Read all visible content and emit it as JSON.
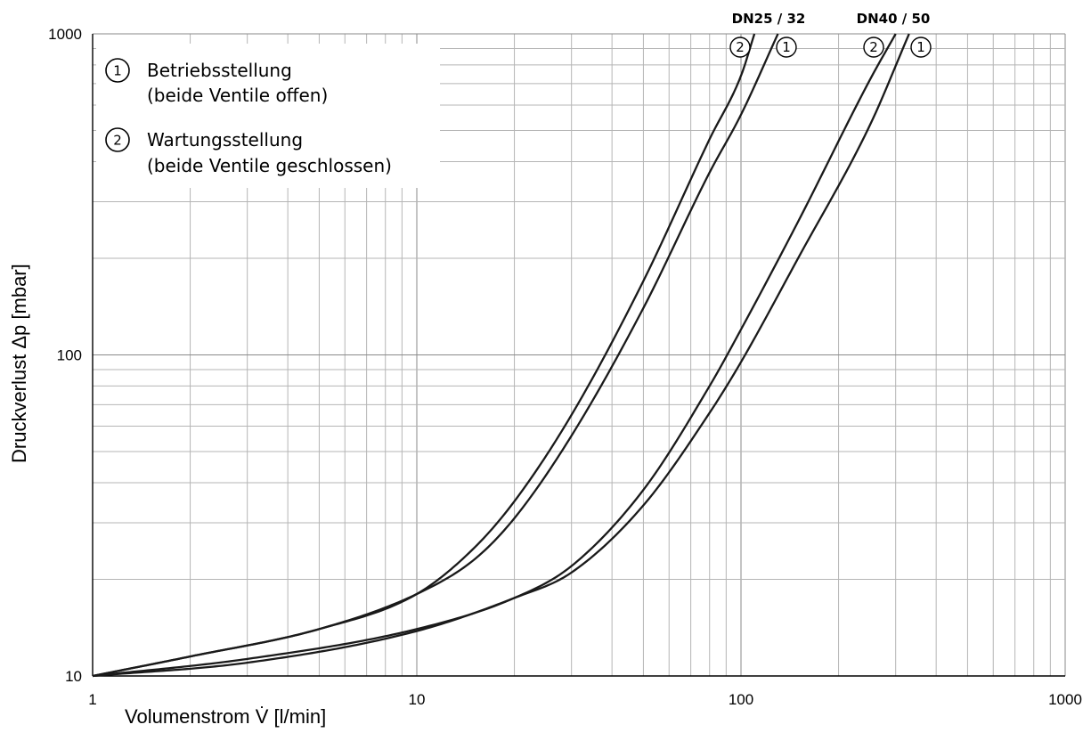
{
  "chart_data": {
    "type": "line",
    "title": "",
    "xlabel": "Volumenstrom V̇ [l/min]",
    "ylabel": "Druckverlust Δp [mbar]",
    "xscale": "log",
    "yscale": "log",
    "xlim": [
      1,
      1000
    ],
    "ylim": [
      10,
      1000
    ],
    "grid": true,
    "x_ticks": [
      "1",
      "10",
      "100",
      "1000"
    ],
    "y_ticks": [
      "10",
      "100",
      "1000"
    ],
    "legend": {
      "placement": "top-left",
      "items": [
        {
          "marker": "1",
          "line1": "Betriebsstellung",
          "line2": "(beide Ventile offen)"
        },
        {
          "marker": "2",
          "line1": "Wartungsstellung",
          "line2": "(beide Ventile geschlossen)"
        }
      ]
    },
    "groups": [
      {
        "label": "DN25 / 32",
        "markers": [
          "2",
          "1"
        ]
      },
      {
        "label": "DN40 / 50",
        "markers": [
          "2",
          "1"
        ]
      }
    ],
    "series": [
      {
        "group": "DN25 / 32",
        "marker": "2",
        "points": [
          [
            1,
            10
          ],
          [
            2,
            11.5
          ],
          [
            5,
            14
          ],
          [
            10,
            18
          ],
          [
            15,
            25
          ],
          [
            20,
            35
          ],
          [
            30,
            65
          ],
          [
            50,
            170
          ],
          [
            80,
            470
          ],
          [
            100,
            740
          ],
          [
            110,
            1000
          ]
        ]
      },
      {
        "group": "DN25 / 32",
        "marker": "1",
        "points": [
          [
            1,
            10
          ],
          [
            2,
            11.5
          ],
          [
            5,
            14
          ],
          [
            10,
            18
          ],
          [
            15,
            23
          ],
          [
            20,
            31
          ],
          [
            30,
            56
          ],
          [
            50,
            140
          ],
          [
            80,
            370
          ],
          [
            100,
            560
          ],
          [
            130,
            1000
          ]
        ]
      },
      {
        "group": "DN40 / 50",
        "marker": "2",
        "points": [
          [
            1,
            10
          ],
          [
            3,
            11.3
          ],
          [
            10,
            14
          ],
          [
            20,
            17.5
          ],
          [
            30,
            22
          ],
          [
            50,
            38
          ],
          [
            80,
            80
          ],
          [
            100,
            120
          ],
          [
            150,
            260
          ],
          [
            250,
            720
          ],
          [
            300,
            1000
          ]
        ]
      },
      {
        "group": "DN40 / 50",
        "marker": "1",
        "points": [
          [
            1,
            10
          ],
          [
            3,
            11
          ],
          [
            10,
            13.8
          ],
          [
            20,
            17.5
          ],
          [
            30,
            21
          ],
          [
            50,
            34
          ],
          [
            80,
            66
          ],
          [
            100,
            95
          ],
          [
            150,
            200
          ],
          [
            250,
            520
          ],
          [
            330,
            1000
          ]
        ]
      }
    ]
  }
}
